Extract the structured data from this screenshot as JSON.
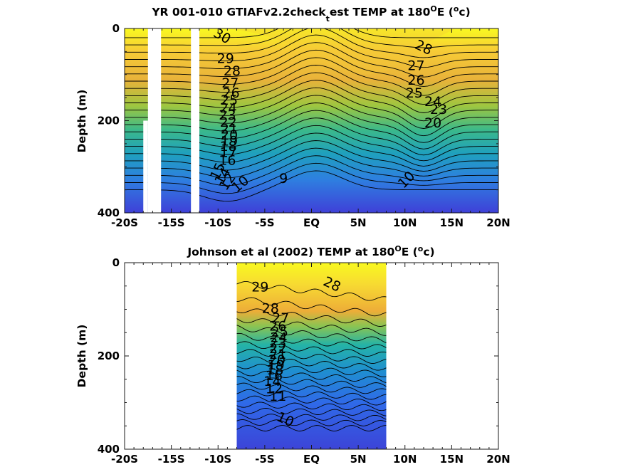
{
  "chart_data": [
    {
      "type": "heatmap",
      "title": "YR 001-010 GTIAFv2.2check_test TEMP at 180°E (°c)",
      "title_parts": {
        "a": "YR 001-010 GTIAFv2.2check",
        "sub": "t",
        "b": "est TEMP at 180",
        "deg1": "O",
        "c": "E (",
        "deg2": "o",
        "d": "c)"
      },
      "ylabel": "Depth (m)",
      "xlim": [
        -20,
        20
      ],
      "ylim": [
        400,
        0
      ],
      "xticks": [
        {
          "v": -20,
          "label": "-20S"
        },
        {
          "v": -15,
          "label": "-15S"
        },
        {
          "v": -10,
          "label": "-10S"
        },
        {
          "v": -5,
          "label": "-5S"
        },
        {
          "v": 0,
          "label": "EQ"
        },
        {
          "v": 5,
          "label": "5N"
        },
        {
          "v": 10,
          "label": "10N"
        },
        {
          "v": 15,
          "label": "15N"
        },
        {
          "v": 20,
          "label": "20N"
        }
      ],
      "yticks": [
        {
          "v": 0,
          "label": "0"
        },
        {
          "v": 200,
          "label": "200"
        },
        {
          "v": 400,
          "label": "400"
        }
      ],
      "data_extent_lat": [
        -20,
        20
      ],
      "missing_columns": [
        {
          "lat": [
            -17.5,
            -16.1
          ],
          "depth": [
            0,
            400
          ]
        },
        {
          "lat": [
            -18.0,
            -17.5
          ],
          "depth": [
            200,
            400
          ]
        },
        {
          "lat": [
            -12.9,
            -12.0
          ],
          "depth": [
            0,
            400
          ]
        }
      ],
      "contour_levels": [
        9,
        10,
        11,
        12,
        13,
        14,
        15,
        16,
        17,
        18,
        19,
        20,
        21,
        22,
        23,
        24,
        25,
        26,
        27,
        28,
        29,
        30
      ],
      "labels": [
        {
          "text": "30",
          "lat": -9.8,
          "depth": 25,
          "rot": 30
        },
        {
          "text": "29",
          "lat": -9.2,
          "depth": 75,
          "rot": 0
        },
        {
          "text": "28",
          "lat": -8.5,
          "depth": 102,
          "rot": 0
        },
        {
          "text": "27",
          "lat": -8.7,
          "depth": 128,
          "rot": 0
        },
        {
          "text": "26",
          "lat": -8.6,
          "depth": 150,
          "rot": 0
        },
        {
          "text": "25",
          "lat": -8.8,
          "depth": 165,
          "rot": 0
        },
        {
          "text": "24",
          "lat": -8.9,
          "depth": 182,
          "rot": 0
        },
        {
          "text": "23",
          "lat": -9.0,
          "depth": 198,
          "rot": 0
        },
        {
          "text": "22",
          "lat": -8.9,
          "depth": 213,
          "rot": 0
        },
        {
          "text": "21",
          "lat": -8.8,
          "depth": 228,
          "rot": 0
        },
        {
          "text": "20",
          "lat": -8.8,
          "depth": 241,
          "rot": 0
        },
        {
          "text": "19",
          "lat": -8.8,
          "depth": 254,
          "rot": 0
        },
        {
          "text": "18",
          "lat": -8.9,
          "depth": 266,
          "rot": 0
        },
        {
          "text": "17",
          "lat": -8.9,
          "depth": 279,
          "rot": 0
        },
        {
          "text": "16",
          "lat": -9.0,
          "depth": 296,
          "rot": 0
        },
        {
          "text": "15",
          "lat": -9.6,
          "depth": 314,
          "rot": -65
        },
        {
          "text": "14",
          "lat": -9.1,
          "depth": 325,
          "rot": -60
        },
        {
          "text": "12",
          "lat": -8.6,
          "depth": 338,
          "rot": -55
        },
        {
          "text": "10",
          "lat": -7.3,
          "depth": 345,
          "rot": -40
        },
        {
          "text": "9",
          "lat": -3.0,
          "depth": 335,
          "rot": 0
        },
        {
          "text": "28",
          "lat": 11.8,
          "depth": 50,
          "rot": 25
        },
        {
          "text": "27",
          "lat": 11.2,
          "depth": 90,
          "rot": 0
        },
        {
          "text": "26",
          "lat": 11.2,
          "depth": 122,
          "rot": 0
        },
        {
          "text": "25",
          "lat": 11.0,
          "depth": 150,
          "rot": 0
        },
        {
          "text": "24",
          "lat": 13.0,
          "depth": 168,
          "rot": 0
        },
        {
          "text": "23",
          "lat": 13.6,
          "depth": 185,
          "rot": 0
        },
        {
          "text": "20",
          "lat": 13.0,
          "depth": 215,
          "rot": 0
        },
        {
          "text": "10",
          "lat": 10.5,
          "depth": 335,
          "rot": -45
        }
      ]
    },
    {
      "type": "heatmap",
      "title": "Johnson et al (2002) TEMP at 180°E (°c)",
      "title_parts": {
        "a": "Johnson et al (2002) TEMP at 180",
        "deg1": "O",
        "c": "E (",
        "deg2": "o",
        "d": "c)"
      },
      "ylabel": "Depth (m)",
      "xlim": [
        -20,
        20
      ],
      "ylim": [
        400,
        0
      ],
      "xticks": [
        {
          "v": -20,
          "label": "-20S"
        },
        {
          "v": -15,
          "label": "-15S"
        },
        {
          "v": -10,
          "label": "-10S"
        },
        {
          "v": -5,
          "label": "-5S"
        },
        {
          "v": 0,
          "label": "EQ"
        },
        {
          "v": 5,
          "label": "5N"
        },
        {
          "v": 10,
          "label": "10N"
        },
        {
          "v": 15,
          "label": "15N"
        },
        {
          "v": 20,
          "label": "20N"
        }
      ],
      "yticks": [
        {
          "v": 0,
          "label": "0"
        },
        {
          "v": 200,
          "label": "200"
        },
        {
          "v": 400,
          "label": "400"
        }
      ],
      "data_extent_lat": [
        -8,
        8
      ],
      "missing_columns": [],
      "contour_levels": [
        10,
        11,
        12,
        13,
        14,
        15,
        16,
        17,
        18,
        19,
        20,
        21,
        22,
        23,
        24,
        25,
        26,
        27,
        28,
        29
      ],
      "labels": [
        {
          "text": "29",
          "lat": -5.5,
          "depth": 62,
          "rot": 0
        },
        {
          "text": "28",
          "lat": 2.0,
          "depth": 55,
          "rot": 25
        },
        {
          "text": "28",
          "lat": -4.4,
          "depth": 108,
          "rot": 0
        },
        {
          "text": "27",
          "lat": -3.3,
          "depth": 128,
          "rot": 0
        },
        {
          "text": "26",
          "lat": -3.6,
          "depth": 146,
          "rot": 0
        },
        {
          "text": "25",
          "lat": -3.4,
          "depth": 158,
          "rot": 0
        },
        {
          "text": "24",
          "lat": -3.5,
          "depth": 170,
          "rot": 0
        },
        {
          "text": "23",
          "lat": -3.6,
          "depth": 182,
          "rot": 0
        },
        {
          "text": "22",
          "lat": -3.6,
          "depth": 194,
          "rot": 0
        },
        {
          "text": "21",
          "lat": -3.6,
          "depth": 206,
          "rot": 0
        },
        {
          "text": "20",
          "lat": -3.7,
          "depth": 218,
          "rot": 0
        },
        {
          "text": "19",
          "lat": -3.8,
          "depth": 229,
          "rot": 0
        },
        {
          "text": "18",
          "lat": -3.9,
          "depth": 240,
          "rot": 0
        },
        {
          "text": "16",
          "lat": -4.0,
          "depth": 252,
          "rot": 0
        },
        {
          "text": "14",
          "lat": -4.2,
          "depth": 264,
          "rot": 0
        },
        {
          "text": "12",
          "lat": -4.0,
          "depth": 280,
          "rot": 0
        },
        {
          "text": "11",
          "lat": -3.6,
          "depth": 296,
          "rot": 0
        },
        {
          "text": "10",
          "lat": -3.0,
          "depth": 345,
          "rot": 25
        }
      ]
    }
  ]
}
